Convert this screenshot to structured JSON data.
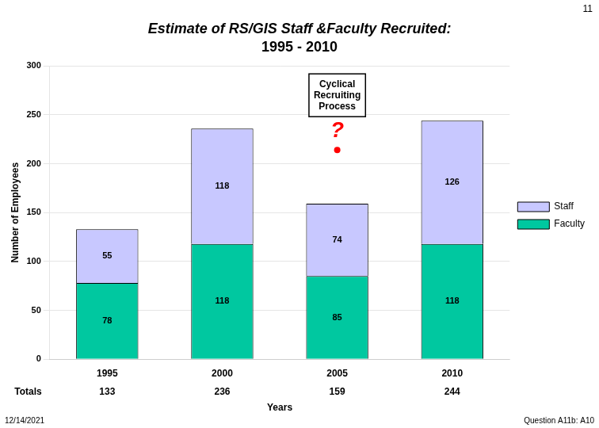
{
  "chart_data": {
    "type": "bar",
    "title": "Estimate of RS/GIS Staff &Faculty Recruited:",
    "subtitle": "1995 - 2010",
    "categories": [
      "1995",
      "2000",
      "2005",
      "2010"
    ],
    "series": [
      {
        "name": "Faculty",
        "color": "#00C8A0",
        "values": [
          78,
          118,
          85,
          118
        ]
      },
      {
        "name": "Staff",
        "color": "#C8C8FF",
        "values": [
          55,
          118,
          74,
          126
        ]
      }
    ],
    "stacked": true,
    "data_labels": true,
    "ylim": [
      0,
      300
    ],
    "yticks": [
      0,
      50,
      100,
      150,
      200,
      250,
      300
    ],
    "ylabel": "Number of Employees",
    "xlabel": "Years",
    "grid": true,
    "legend": "right",
    "totals_label": "Totals",
    "totals": [
      133,
      236,
      159,
      244
    ],
    "annotations": [
      {
        "text": "Cyclical\nRecruiting\nProcess"
      },
      {
        "text": "?",
        "color": "#FF0000"
      },
      {
        "text": "12/14/2021"
      },
      {
        "text": "Question A11b: A10"
      },
      {
        "text": "11"
      }
    ]
  }
}
